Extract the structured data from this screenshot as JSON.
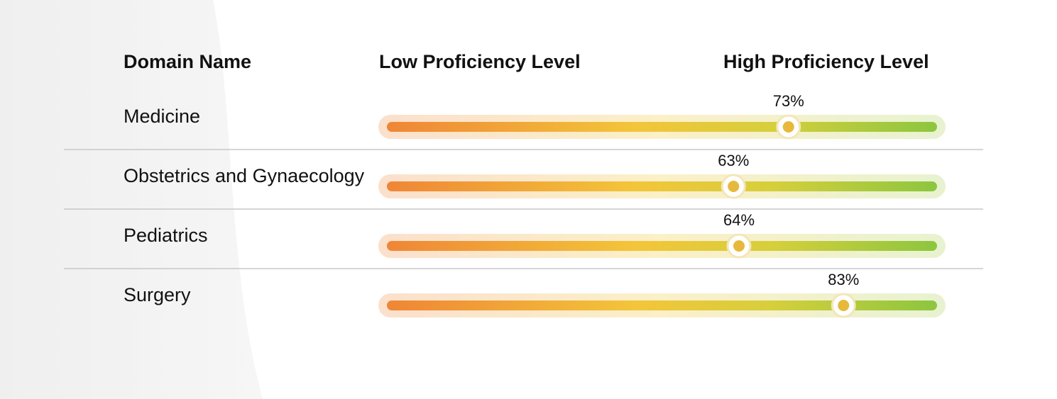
{
  "header": {
    "domain": "Domain Name",
    "low": "Low Proficiency Level",
    "high": "High Proficiency Level"
  },
  "xlim": [
    0,
    100
  ],
  "rows": [
    {
      "name": "Medicine",
      "value": 73,
      "label": "73%"
    },
    {
      "name": "Obstetrics and Gynaecology",
      "value": 63,
      "label": "63%"
    },
    {
      "name": "Pediatrics",
      "value": 64,
      "label": "64%"
    },
    {
      "name": "Surgery",
      "value": 83,
      "label": "83%"
    }
  ]
}
